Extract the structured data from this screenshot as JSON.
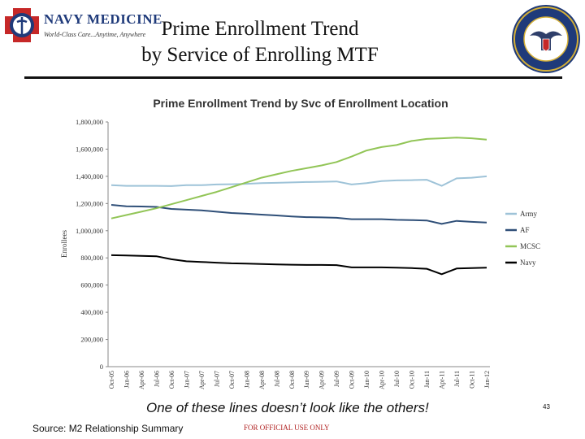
{
  "header": {
    "logo_text": "NAVY MEDICINE",
    "logo_tagline": "World-Class Care...Anytime, Anywhere",
    "title_line1": "Prime Enrollment Trend",
    "title_line2": "by Service of Enrolling MTF"
  },
  "footer": {
    "caption": "One of these lines doesn’t look like the others!",
    "source": "Source:  M2 Relationship Summary",
    "classification": "FOR OFFICIAL USE ONLY",
    "page_number": "43"
  },
  "colors": {
    "Army": "#9ec3d8",
    "AF": "#2f4f78",
    "MCSC": "#92c557",
    "Navy": "#000000",
    "rule": "#111111"
  },
  "chart_data": {
    "type": "line",
    "title": "Prime Enrollment Trend by Svc of Enrollment Location",
    "xlabel": "",
    "ylabel": "Enrollees",
    "ylim": [
      0,
      1800000
    ],
    "yticks": [
      0,
      200000,
      400000,
      600000,
      800000,
      1000000,
      1200000,
      1400000,
      1600000,
      1800000
    ],
    "ytick_labels": [
      "0",
      "200,000",
      "400,000",
      "600,000",
      "800,000",
      "1,000,000",
      "1,200,000",
      "1,400,000",
      "1,600,000",
      "1,800,000"
    ],
    "x_tick_labels": [
      "Oct-05",
      "Jan-06",
      "Apr-06",
      "Jul-06",
      "Oct-06",
      "Jan-07",
      "Apr-07",
      "Jul-07",
      "Oct-07",
      "Jan-08",
      "Apr-08",
      "Jul-08",
      "Oct-08",
      "Jan-09",
      "Apr-09",
      "Jul-09",
      "Oct-09",
      "Jan-10",
      "Apr-10",
      "Jul-10",
      "Oct-10",
      "Jan-11",
      "Apr-11",
      "Jul-11",
      "Oct-11",
      "Jan-12"
    ],
    "grid": false,
    "legend_position": "right",
    "series": [
      {
        "name": "Army",
        "values": [
          1335000,
          1330000,
          1330000,
          1330000,
          1328000,
          1335000,
          1335000,
          1340000,
          1342000,
          1345000,
          1350000,
          1352000,
          1355000,
          1358000,
          1360000,
          1362000,
          1340000,
          1350000,
          1365000,
          1370000,
          1372000,
          1375000,
          1330000,
          1385000,
          1390000,
          1400000
        ]
      },
      {
        "name": "AF",
        "values": [
          1190000,
          1180000,
          1178000,
          1175000,
          1160000,
          1155000,
          1150000,
          1140000,
          1130000,
          1125000,
          1118000,
          1112000,
          1105000,
          1100000,
          1098000,
          1095000,
          1085000,
          1085000,
          1085000,
          1080000,
          1078000,
          1075000,
          1050000,
          1072000,
          1065000,
          1060000
        ]
      },
      {
        "name": "MCSC",
        "values": [
          1090000,
          1115000,
          1140000,
          1165000,
          1195000,
          1225000,
          1255000,
          1285000,
          1320000,
          1355000,
          1390000,
          1415000,
          1440000,
          1460000,
          1480000,
          1505000,
          1545000,
          1590000,
          1615000,
          1630000,
          1660000,
          1675000,
          1680000,
          1685000,
          1680000,
          1670000
        ]
      },
      {
        "name": "Navy",
        "values": [
          820000,
          818000,
          815000,
          812000,
          790000,
          775000,
          770000,
          765000,
          760000,
          758000,
          755000,
          752000,
          750000,
          748000,
          748000,
          747000,
          730000,
          730000,
          730000,
          728000,
          725000,
          720000,
          680000,
          722000,
          725000,
          728000
        ]
      }
    ]
  }
}
